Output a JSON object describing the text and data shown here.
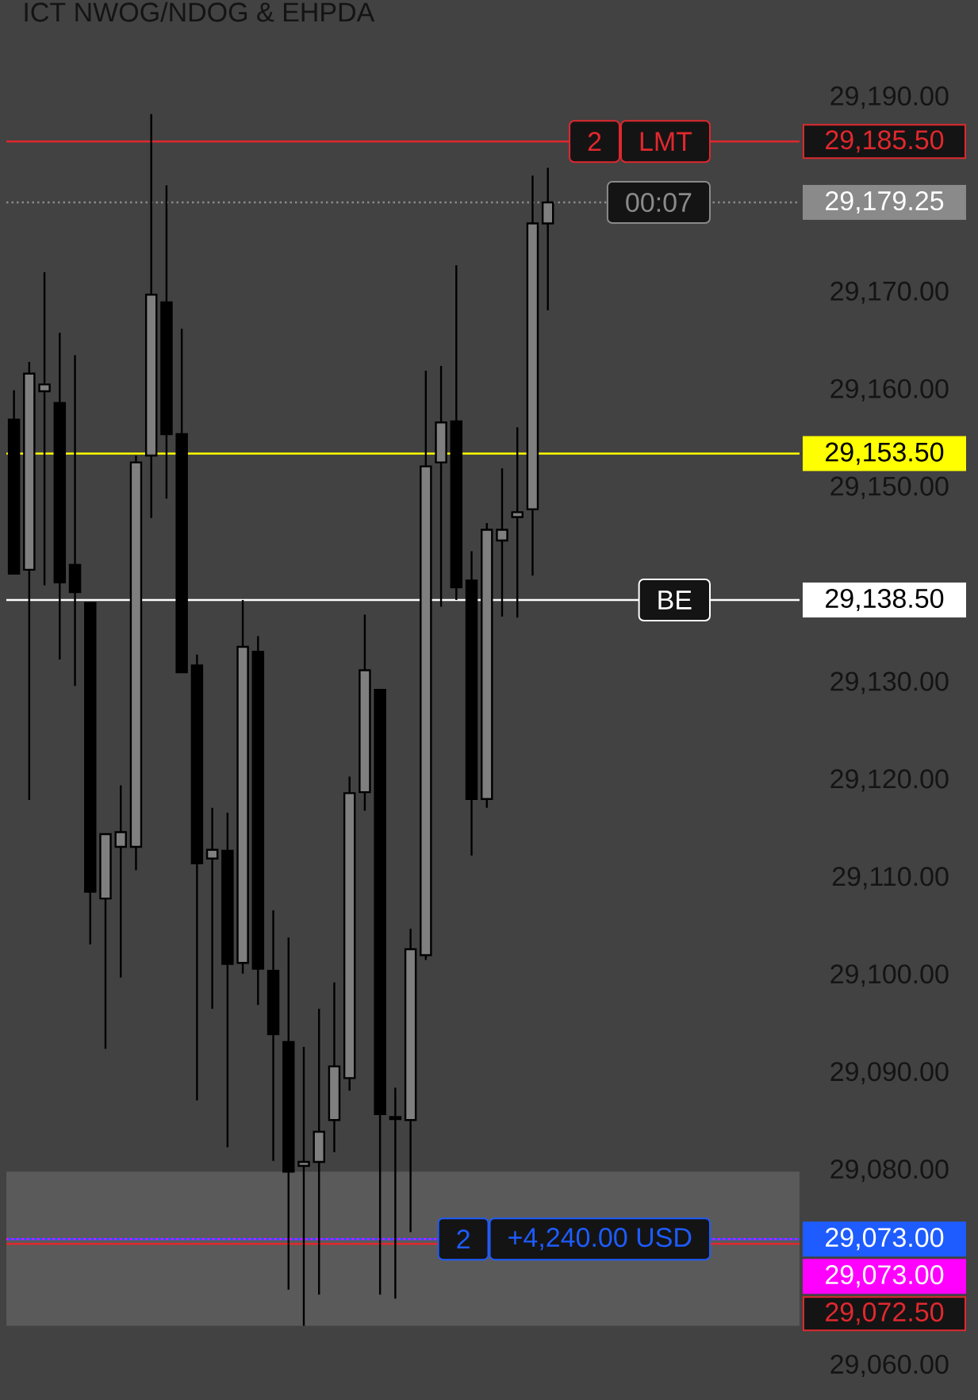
{
  "chart_data": {
    "type": "candlestick",
    "title": "ICT NWOG/NDOG & EHPDA",
    "categories": [
      null,
      null,
      null,
      null,
      null,
      null,
      null,
      null,
      null,
      null,
      null,
      null,
      null,
      null,
      null,
      null,
      null,
      null,
      null,
      null,
      null,
      null,
      null,
      null,
      null,
      null,
      null,
      null,
      null,
      null,
      null,
      null,
      null,
      null,
      null,
      null,
      null,
      null,
      null,
      null,
      null,
      null,
      null,
      null,
      null,
      null,
      null,
      null,
      null,
      null,
      null,
      null
    ],
    "ohlc": [
      [
        29157.0,
        29160.0,
        29141.2,
        29141.2
      ],
      [
        29141.6,
        29162.9,
        29118.0,
        29161.7
      ],
      [
        29159.9,
        29172.1,
        29140.0,
        29160.6
      ],
      [
        29158.7,
        29165.9,
        29132.4,
        29140.3
      ],
      [
        29142.1,
        29163.6,
        29129.7,
        29139.3
      ],
      [
        29138.2,
        29138.2,
        29103.2,
        29108.6
      ],
      [
        29107.9,
        29114.5,
        29092.5,
        29114.5
      ],
      [
        29113.2,
        29119.5,
        29099.8,
        29114.7
      ],
      [
        29113.2,
        29153.3,
        29110.8,
        29152.6
      ],
      [
        29153.3,
        29188.3,
        29146.9,
        29169.8
      ],
      [
        29169.0,
        29181.0,
        29148.9,
        29155.5
      ],
      [
        29155.5,
        29166.3,
        29131.1,
        29131.1
      ],
      [
        29131.8,
        29132.9,
        29087.2,
        29111.5
      ],
      [
        29112.0,
        29117.2,
        29096.6,
        29112.9
      ],
      [
        29112.8,
        29116.7,
        29082.4,
        29101.2
      ],
      [
        29101.3,
        29138.5,
        29100.2,
        29133.7
      ],
      [
        29133.2,
        29134.8,
        29097.0,
        29100.7
      ],
      [
        29100.5,
        29106.7,
        29081.0,
        29094.0
      ],
      [
        29093.2,
        29103.9,
        29067.8,
        29079.9
      ],
      [
        29080.5,
        29092.7,
        29064.1,
        29080.9
      ],
      [
        29080.9,
        29096.6,
        29067.3,
        29084.0
      ],
      [
        29085.2,
        29099.3,
        29081.9,
        29090.7
      ],
      [
        29089.5,
        29120.4,
        29088.2,
        29118.7
      ],
      [
        29118.8,
        29137.0,
        29116.9,
        29131.3
      ],
      [
        29129.3,
        29129.3,
        29067.3,
        29085.8
      ],
      [
        29085.3,
        29088.5,
        29066.9,
        29085.5
      ],
      [
        29085.2,
        29104.8,
        29073.7,
        29102.7
      ],
      [
        29102.1,
        29162.0,
        29101.6,
        29152.2
      ],
      [
        29152.6,
        29162.5,
        29137.8,
        29156.7
      ],
      [
        29156.8,
        29172.8,
        29138.5,
        29139.8
      ],
      [
        29140.5,
        29143.5,
        29112.3,
        29118.1
      ],
      [
        29118.1,
        29146.4,
        29117.2,
        29145.7
      ],
      [
        29144.6,
        29152.0,
        29136.8,
        29145.7
      ],
      [
        29147.0,
        29156.2,
        29136.7,
        29147.5
      ],
      [
        29147.8,
        29182.0,
        29141.0,
        29177.1
      ],
      [
        29177.1,
        29182.8,
        29168.2,
        29179.25
      ],
      null,
      null,
      null,
      null,
      null,
      null,
      null,
      null,
      null,
      null,
      null,
      null,
      null,
      null,
      null,
      null
    ],
    "colors": [
      "#000000",
      "#7f7f7f",
      "#7f7f7f",
      "#000000",
      "#000000",
      "#000000",
      "#7f7f7f",
      "#7f7f7f",
      "#7f7f7f",
      "#7f7f7f",
      "#000000",
      "#000000",
      "#000000",
      "#7f7f7f",
      "#000000",
      "#7f7f7f",
      "#000000",
      "#000000",
      "#000000",
      "#7f7f7f",
      "#7f7f7f",
      "#7f7f7f",
      "#7f7f7f",
      "#7f7f7f",
      "#000000",
      "#7f7f7f",
      "#7f7f7f",
      "#7f7f7f",
      "#7f7f7f",
      "#000000",
      "#000000",
      "#7f7f7f",
      "#7f7f7f",
      "#7f7f7f",
      "#7f7f7f",
      "#7f7f7f",
      null,
      null,
      null,
      null,
      null,
      null,
      null,
      null,
      null,
      null,
      null,
      null,
      null,
      null,
      null,
      null
    ],
    "ylim": [
      29056.5,
      29200
    ],
    "yticks": [
      {
        "value": 29060,
        "label": "29,060.00"
      },
      {
        "value": 29080,
        "label": "29,080.00"
      },
      {
        "value": 29090,
        "label": "29,090.00"
      },
      {
        "value": 29100,
        "label": "29,100.00"
      },
      {
        "value": 29110,
        "label": "29,110.00"
      },
      {
        "value": 29120,
        "label": "29,120.00"
      },
      {
        "value": 29130,
        "label": "29,130.00"
      },
      {
        "value": 29150,
        "label": "29,150.00"
      },
      {
        "value": 29160,
        "label": "29,160.00"
      },
      {
        "value": 29170,
        "label": "29,170.00"
      },
      {
        "value": 29190,
        "label": "29,190.00"
      }
    ],
    "tick_labels": "y",
    "bands": [
      {
        "axis": "y",
        "from": 29064.1,
        "to": 29079.9,
        "color": "#5a5a5a"
      }
    ],
    "ref_lines": [
      {
        "axis": "y",
        "value": 29185.5,
        "label": "29,185.50",
        "color": "#e0282e"
      },
      {
        "axis": "y",
        "value": 29179.25,
        "label": "29,179.25",
        "color": "#8a8a8a",
        "line_style": "dotted"
      },
      {
        "axis": "y",
        "value": 29153.5,
        "label": "29,153.50",
        "color": "#ffff00"
      },
      {
        "axis": "y",
        "value": 29138.5,
        "label": "29,138.50",
        "color": "#ffffff"
      },
      {
        "axis": "y",
        "value": 29073,
        "label": "29,073.00",
        "color": "#1e5cff"
      },
      {
        "axis": "y",
        "value": 29073,
        "label": "29,073.00",
        "color": "#ff00ff",
        "line_style": "dotted"
      },
      {
        "axis": "y",
        "value": 29072.5,
        "label": "29,072.50",
        "color": "#e0282e"
      }
    ],
    "annotations": [
      {
        "text": "2",
        "y": 29185.5
      },
      {
        "text": "LMT",
        "y": 29185.5
      },
      {
        "text": "00:07",
        "y": 29179.25
      },
      {
        "text": "BE",
        "y": 29138.5
      },
      {
        "text": "2",
        "y": 29073
      },
      {
        "text": "+4,240.00 USD",
        "y": 29073
      }
    ]
  }
}
